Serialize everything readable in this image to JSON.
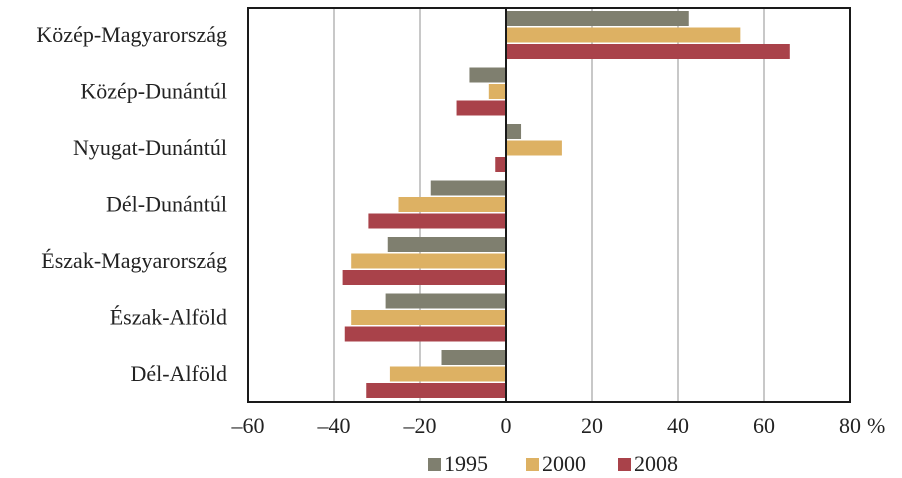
{
  "chart_data": {
    "type": "bar",
    "orientation": "horizontal",
    "categories": [
      "Közép-Magyarország",
      "Közép-Dunántúl",
      "Nyugat-Dunántúl",
      "Dél-Dunántúl",
      "Észak-Magyarország",
      "Észak-Alföld",
      "Dél-Alföld"
    ],
    "series": [
      {
        "name": "1995",
        "color": "#7f7f6f",
        "values": [
          42.5,
          -8.5,
          3.5,
          -17.5,
          -27.5,
          -28.0,
          -15.0
        ]
      },
      {
        "name": "2000",
        "color": "#ddb163",
        "values": [
          54.5,
          -4.0,
          13.0,
          -25.0,
          -36.0,
          -36.0,
          -27.0
        ]
      },
      {
        "name": "2008",
        "color": "#a9424a",
        "values": [
          66.0,
          -11.5,
          -2.5,
          -32.0,
          -38.0,
          -37.5,
          -32.5
        ]
      }
    ],
    "xlim": [
      -60,
      80
    ],
    "xticks": [
      "–60",
      "–40",
      "–20",
      "0",
      "20",
      "40",
      "60",
      "80"
    ],
    "x_unit": "%",
    "grid": "vertical",
    "legend_position": "bottom"
  }
}
